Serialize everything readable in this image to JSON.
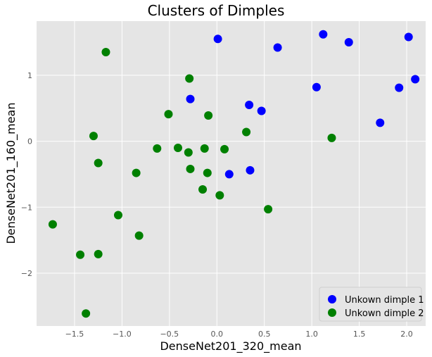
{
  "chart_data": {
    "type": "scatter",
    "title": "Clusters of Dimples",
    "xlabel": "DenseNet201_320_mean",
    "ylabel": "DenseNet201_160_mean",
    "xlim": [
      -1.9,
      2.2
    ],
    "ylim": [
      -2.8,
      1.82
    ],
    "xticks": [
      -1.5,
      -1.0,
      -0.5,
      0.0,
      0.5,
      1.0,
      1.5,
      2.0
    ],
    "xtick_labels": [
      "−1.5",
      "−1.0",
      "−0.5",
      "0.0",
      "0.5",
      "1.0",
      "1.5",
      "2.0"
    ],
    "yticks": [
      1,
      0,
      -1,
      -2
    ],
    "ytick_labels": [
      "1",
      "0",
      "−1",
      "−2"
    ],
    "grid": true,
    "legend_position": "bottom-right",
    "series": [
      {
        "name": "Unkown dimple 1",
        "color": "#0000ff",
        "points": [
          [
            0.01,
            1.55
          ],
          [
            0.64,
            1.42
          ],
          [
            1.12,
            1.62
          ],
          [
            1.39,
            1.5
          ],
          [
            2.02,
            1.58
          ],
          [
            2.09,
            0.94
          ],
          [
            1.92,
            0.81
          ],
          [
            1.05,
            0.82
          ],
          [
            1.72,
            0.28
          ],
          [
            -0.28,
            0.64
          ],
          [
            0.34,
            0.55
          ],
          [
            0.47,
            0.46
          ],
          [
            0.13,
            -0.5
          ],
          [
            0.35,
            -0.44
          ]
        ]
      },
      {
        "name": "Unkown dimple 2",
        "color": "#008000",
        "points": [
          [
            -1.17,
            1.35
          ],
          [
            -0.29,
            0.95
          ],
          [
            -0.51,
            0.41
          ],
          [
            -0.09,
            0.39
          ],
          [
            -1.3,
            0.08
          ],
          [
            0.31,
            0.14
          ],
          [
            1.21,
            0.05
          ],
          [
            -0.63,
            -0.11
          ],
          [
            -0.41,
            -0.1
          ],
          [
            -0.13,
            -0.11
          ],
          [
            0.08,
            -0.12
          ],
          [
            -0.3,
            -0.17
          ],
          [
            -1.25,
            -0.33
          ],
          [
            -0.85,
            -0.48
          ],
          [
            -0.28,
            -0.42
          ],
          [
            -0.1,
            -0.48
          ],
          [
            -0.15,
            -0.73
          ],
          [
            0.03,
            -0.82
          ],
          [
            0.54,
            -1.03
          ],
          [
            -1.04,
            -1.12
          ],
          [
            -1.73,
            -1.26
          ],
          [
            -0.82,
            -1.43
          ],
          [
            -1.44,
            -1.72
          ],
          [
            -1.25,
            -1.71
          ],
          [
            -1.38,
            -2.61
          ]
        ]
      }
    ]
  }
}
